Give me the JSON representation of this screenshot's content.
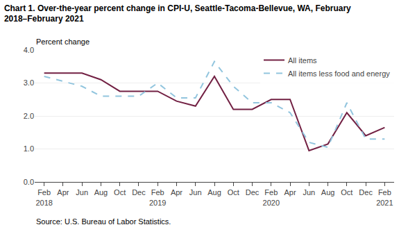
{
  "chart_data": {
    "type": "line",
    "title": "Chart 1. Over-the-year percent change in CPI-U, Seattle-Tacoma-Bellevue, WA, February\n2018–February 2021",
    "y_label": "Percent change",
    "annotations": [
      "Source: U.S. Bureau of Labor Statistics."
    ],
    "categories": [
      "Feb\n2018",
      "Apr",
      "Jun",
      "Aug",
      "Oct",
      "Dec",
      "Feb\n2019",
      "Apr",
      "Jun",
      "Aug",
      "Oct",
      "Dec",
      "Feb\n2020",
      "Apr",
      "Jun",
      "Aug",
      "Oct",
      "Dec",
      "Feb\n2021"
    ],
    "series": [
      {
        "name": "All items",
        "color": "#722043",
        "line_style": "solid",
        "values": [
          3.3,
          3.3,
          3.3,
          3.1,
          2.75,
          2.75,
          2.75,
          2.45,
          2.3,
          3.2,
          2.2,
          2.2,
          2.5,
          2.5,
          0.95,
          1.15,
          2.1,
          1.4,
          1.65
        ]
      },
      {
        "name": "All items less food and energy",
        "color": "#92c5de",
        "line_style": "dashed",
        "values": [
          3.2,
          3.05,
          2.9,
          2.6,
          2.6,
          2.6,
          3.0,
          2.55,
          2.55,
          3.65,
          2.9,
          2.4,
          2.4,
          2.1,
          1.2,
          1.05,
          2.4,
          1.3,
          1.3
        ]
      }
    ],
    "ylim": [
      0.0,
      4.0
    ],
    "yticks": [
      {
        "value": 0.0,
        "label": "0.0"
      },
      {
        "value": 1.0,
        "label": "1.0"
      },
      {
        "value": 2.0,
        "label": "2.0"
      },
      {
        "value": 3.0,
        "label": "3.0"
      },
      {
        "value": 4.0,
        "label": "4.0"
      }
    ],
    "grid": true,
    "legend": "upper right"
  }
}
